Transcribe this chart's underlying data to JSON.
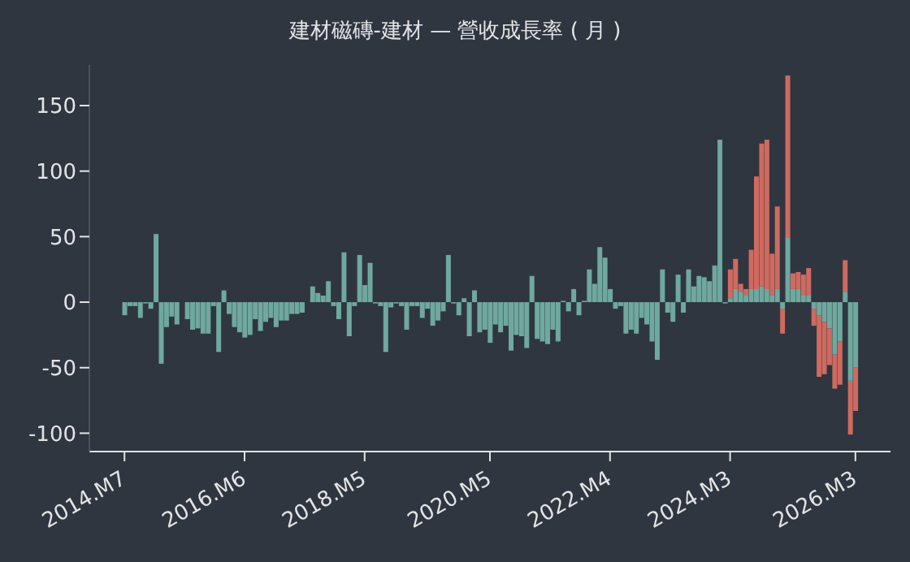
{
  "chart_data": {
    "type": "bar",
    "title": "建材磁磚-建材 — 營收成長率 ( 月 )",
    "stacked": true,
    "categories": [
      "2014.M7",
      null,
      null,
      null,
      null,
      null,
      null,
      null,
      null,
      null,
      null,
      null,
      null,
      null,
      null,
      null,
      null,
      null,
      null,
      null,
      null,
      null,
      null,
      "2016.M6",
      null,
      null,
      null,
      null,
      null,
      null,
      null,
      null,
      null,
      null,
      null,
      null,
      null,
      null,
      null,
      null,
      null,
      null,
      null,
      null,
      null,
      null,
      "2018.M5",
      null,
      null,
      null,
      null,
      null,
      null,
      null,
      null,
      null,
      null,
      null,
      null,
      null,
      null,
      null,
      null,
      null,
      null,
      null,
      null,
      null,
      null,
      null,
      "2020.M5",
      null,
      null,
      null,
      null,
      null,
      null,
      null,
      null,
      null,
      null,
      null,
      null,
      null,
      null,
      null,
      null,
      null,
      null,
      null,
      null,
      null,
      null,
      "2022.M4",
      null,
      null,
      null,
      null,
      null,
      null,
      null,
      null,
      null,
      null,
      null,
      null,
      null,
      null,
      null,
      null,
      null,
      null,
      null,
      null,
      null,
      null,
      "2024.M3",
      null,
      null,
      null,
      null,
      null,
      null,
      null,
      null,
      null,
      null,
      null,
      null,
      null,
      null,
      null,
      null,
      null,
      null,
      null,
      null,
      null,
      null,
      null,
      "2026.M3"
    ],
    "series": [
      {
        "color": "#6fa89f",
        "values": [
          -10,
          -3,
          -3,
          -12,
          -1,
          -5,
          52,
          -47,
          -19,
          -11,
          -17,
          0,
          -13,
          -21,
          -20,
          -24,
          -24,
          -3,
          -38,
          9,
          -9,
          -19,
          -23,
          -27,
          -25,
          -13,
          -22,
          -15,
          -12,
          -19,
          -14,
          -14,
          -9,
          -9,
          -8,
          0,
          12,
          7,
          5,
          16,
          -3,
          -13,
          38,
          -26,
          -3,
          36,
          13,
          30,
          -1,
          -3,
          -38,
          -4,
          -1,
          -3,
          -21,
          -3,
          -3,
          -12,
          -5,
          -18,
          -14,
          -7,
          36,
          -1,
          -10,
          3,
          -26,
          9,
          -23,
          -21,
          -31,
          -17,
          -23,
          -18,
          -37,
          -25,
          -26,
          -35,
          20,
          -28,
          -30,
          -32,
          -21,
          -30,
          1,
          -7,
          10,
          -10,
          1,
          25,
          14,
          42,
          34,
          10,
          -5,
          -3,
          -24,
          -21,
          -24,
          -12,
          -17,
          -30,
          -44,
          25,
          -8,
          -15,
          21,
          -8,
          25,
          12,
          20,
          19,
          16,
          28,
          124,
          -1,
          3,
          10,
          8,
          5,
          10,
          10,
          12,
          10,
          5,
          10,
          -5,
          49,
          10,
          10,
          5,
          5,
          -5,
          -10,
          -15,
          -20,
          -40,
          -30,
          8,
          -60,
          -50
        ]
      },
      {
        "color": "#cf6a60",
        "values": [
          null,
          null,
          null,
          null,
          null,
          null,
          null,
          null,
          null,
          null,
          null,
          null,
          null,
          null,
          null,
          null,
          null,
          null,
          null,
          null,
          null,
          null,
          null,
          null,
          null,
          null,
          null,
          null,
          null,
          null,
          null,
          null,
          null,
          null,
          null,
          null,
          null,
          null,
          null,
          null,
          null,
          null,
          null,
          null,
          null,
          null,
          null,
          null,
          null,
          null,
          null,
          null,
          null,
          null,
          null,
          null,
          null,
          null,
          null,
          null,
          null,
          null,
          null,
          null,
          null,
          null,
          null,
          null,
          null,
          null,
          null,
          null,
          null,
          null,
          null,
          null,
          null,
          null,
          null,
          null,
          null,
          null,
          null,
          null,
          null,
          null,
          null,
          null,
          null,
          null,
          null,
          null,
          null,
          null,
          null,
          null,
          null,
          null,
          null,
          null,
          null,
          null,
          null,
          null,
          null,
          null,
          null,
          null,
          null,
          null,
          null,
          null,
          null,
          null,
          null,
          null,
          22,
          23,
          6,
          5,
          30,
          86,
          109,
          114,
          32,
          63,
          -19,
          124,
          12,
          13,
          16,
          21,
          -13,
          -47,
          -40,
          -28,
          -26,
          -33,
          24,
          -41,
          -33
        ]
      }
    ],
    "ylim": [
      -114,
      181
    ],
    "yticks": [
      -100,
      -50,
      0,
      50,
      100,
      150
    ],
    "grid": false,
    "legend": false
  }
}
